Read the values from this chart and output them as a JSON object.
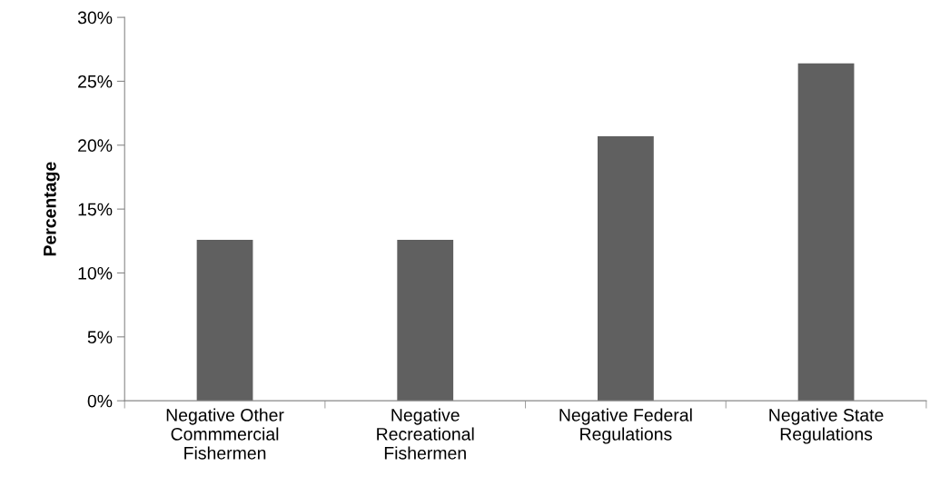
{
  "chart_data": {
    "type": "bar",
    "ylabel": "Percentage",
    "categories": [
      "Negative Other\nCommmercial\nFishermen",
      "Negative\nRecreational\nFishermen",
      "Negative Federal\nRegulations",
      "Negative State\nRegulations"
    ],
    "values": [
      12.6,
      12.6,
      20.7,
      26.4
    ],
    "color": "#606060",
    "ylim": [
      0,
      30
    ],
    "yticks": [
      {
        "value": 0,
        "label": "0%"
      },
      {
        "value": 5,
        "label": "5%"
      },
      {
        "value": 10,
        "label": "10%"
      },
      {
        "value": 15,
        "label": "15%"
      },
      {
        "value": 20,
        "label": "20%"
      },
      {
        "value": 25,
        "label": "25%"
      },
      {
        "value": 30,
        "label": "30%"
      }
    ],
    "grid": false
  }
}
